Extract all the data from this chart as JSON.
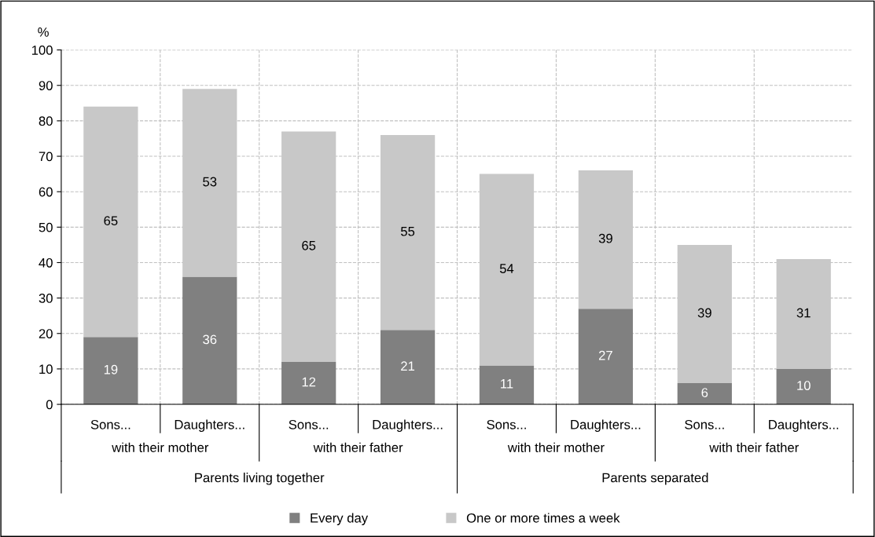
{
  "chart_data": {
    "type": "bar",
    "stacked": true,
    "ylabel": "%",
    "categories": [
      "Sons...",
      "Daughters...",
      "Sons...",
      "Daughters...",
      "Sons...",
      "Daughters...",
      "Sons...",
      "Daughters..."
    ],
    "series": [
      {
        "name": "Every day",
        "color": "#808080",
        "values": [
          19,
          36,
          12,
          21,
          11,
          27,
          6,
          10
        ]
      },
      {
        "name": "One or more times a week",
        "color": "#c8c8c8",
        "values": [
          65,
          53,
          65,
          55,
          54,
          39,
          39,
          31
        ]
      }
    ],
    "annotations": [
      "with their mother",
      "with their father",
      "with their mother",
      "with their father",
      "Parents living together",
      "Parents separated"
    ],
    "ylim": [
      0,
      100
    ],
    "yticks": [
      0,
      10,
      20,
      30,
      40,
      50,
      60,
      70,
      80,
      90,
      100
    ],
    "grid": true,
    "legend": "bottom",
    "data_labels": true
  }
}
